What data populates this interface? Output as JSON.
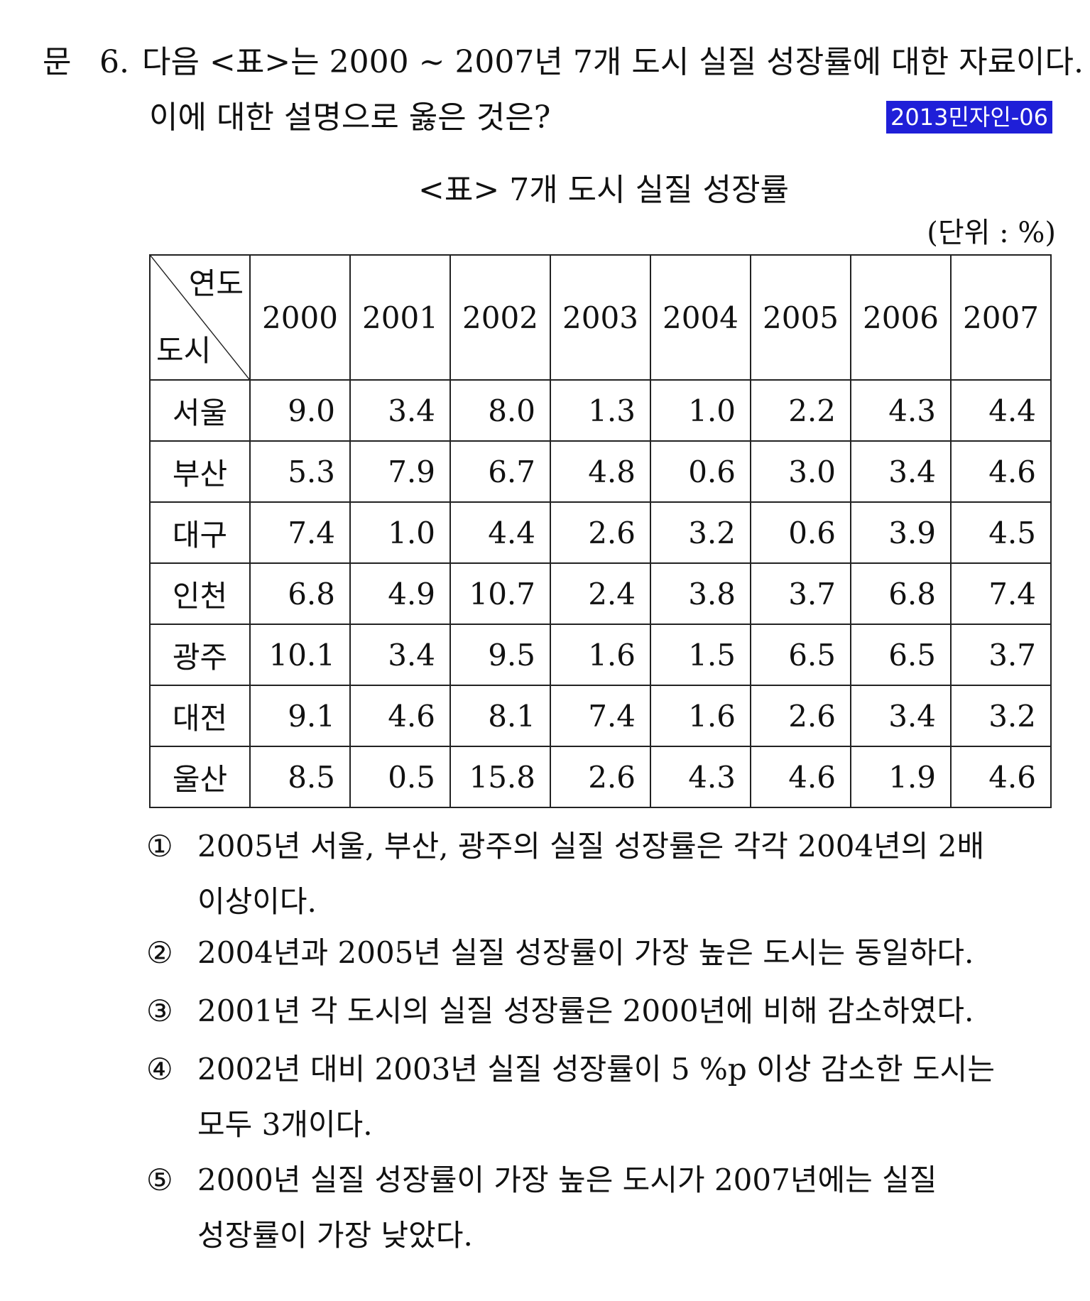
{
  "question": {
    "label": "문",
    "number": "6.",
    "line1": "다음 <표>는 2000 ~ 2007년 7개 도시 실질 성장률에 대한 자료이다.",
    "line2": "이에 대한 설명으로 옳은 것은?",
    "badge": "2013민자인-06",
    "badge_color": "#1f1fd8"
  },
  "table": {
    "title": "<표> 7개 도시 실질 성장률",
    "unit": "(단위 : %)",
    "corner_top": "연도",
    "corner_bottom": "도시",
    "years": [
      "2000",
      "2001",
      "2002",
      "2003",
      "2004",
      "2005",
      "2006",
      "2007"
    ],
    "rows": [
      {
        "city": "서울",
        "values": [
          "9.0",
          "3.4",
          "8.0",
          "1.3",
          "1.0",
          "2.2",
          "4.3",
          "4.4"
        ]
      },
      {
        "city": "부산",
        "values": [
          "5.3",
          "7.9",
          "6.7",
          "4.8",
          "0.6",
          "3.0",
          "3.4",
          "4.6"
        ]
      },
      {
        "city": "대구",
        "values": [
          "7.4",
          "1.0",
          "4.4",
          "2.6",
          "3.2",
          "0.6",
          "3.9",
          "4.5"
        ]
      },
      {
        "city": "인천",
        "values": [
          "6.8",
          "4.9",
          "10.7",
          "2.4",
          "3.8",
          "3.7",
          "6.8",
          "7.4"
        ]
      },
      {
        "city": "광주",
        "values": [
          "10.1",
          "3.4",
          "9.5",
          "1.6",
          "1.5",
          "6.5",
          "6.5",
          "3.7"
        ]
      },
      {
        "city": "대전",
        "values": [
          "9.1",
          "4.6",
          "8.1",
          "7.4",
          "1.6",
          "2.6",
          "3.4",
          "3.2"
        ]
      },
      {
        "city": "울산",
        "values": [
          "8.5",
          "0.5",
          "15.8",
          "2.6",
          "4.3",
          "4.6",
          "1.9",
          "4.6"
        ]
      }
    ]
  },
  "options": [
    {
      "mark": "①",
      "text": "2005년 서울, 부산, 광주의 실질 성장률은 각각 2004년의 2배",
      "cont": "이상이다."
    },
    {
      "mark": "②",
      "text": "2004년과 2005년 실질 성장률이 가장 높은 도시는 동일하다.",
      "cont": ""
    },
    {
      "mark": "③",
      "text": "2001년 각 도시의 실질 성장률은 2000년에 비해 감소하였다.",
      "cont": ""
    },
    {
      "mark": "④",
      "text": "2002년 대비 2003년 실질 성장률이 5 %p 이상 감소한 도시는",
      "cont": "모두 3개이다."
    },
    {
      "mark": "⑤",
      "text": "2000년 실질 성장률이 가장 높은 도시가 2007년에는 실질",
      "cont": "성장률이 가장 낮았다."
    }
  ]
}
